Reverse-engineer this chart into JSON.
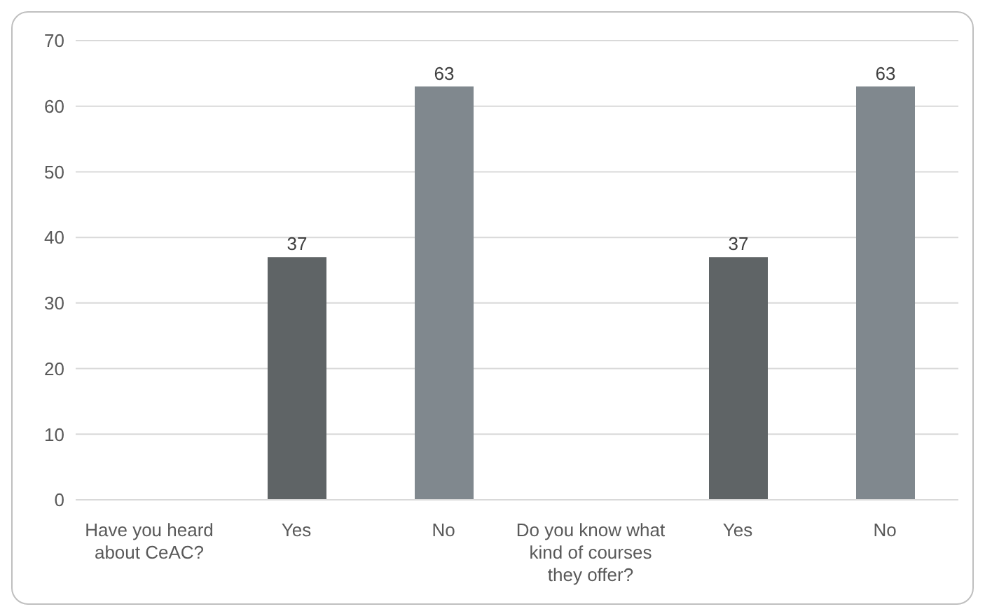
{
  "chart_data": {
    "type": "bar",
    "categories": [
      "Have you heard about CeAC?",
      "Yes",
      "No",
      "Do you know what kind of courses they offer?",
      "Yes",
      "No"
    ],
    "values": [
      null,
      37,
      63,
      null,
      37,
      63
    ],
    "colors": [
      "#5f6466",
      "#5f6466",
      "#80888e",
      "#5f6466",
      "#5f6466",
      "#80888e"
    ],
    "ylim": [
      0,
      70
    ],
    "yticks": [
      0,
      10,
      20,
      30,
      40,
      50,
      60,
      70
    ],
    "grid": "y",
    "data_labels": true
  }
}
